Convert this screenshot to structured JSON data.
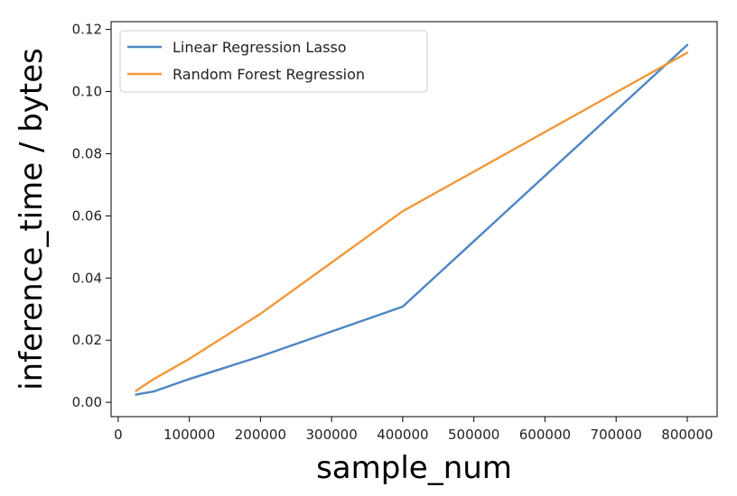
{
  "chart_data": {
    "type": "line",
    "xlabel": "sample_num",
    "ylabel": "inference_time / bytes",
    "xlim": [
      -10000,
      842000
    ],
    "ylim": [
      -0.0046,
      0.1225
    ],
    "xticks": [
      0,
      100000,
      200000,
      300000,
      400000,
      500000,
      600000,
      700000,
      800000
    ],
    "xtick_labels": [
      "0",
      "100000",
      "200000",
      "300000",
      "400000",
      "500000",
      "600000",
      "700000",
      "800000"
    ],
    "yticks": [
      0.0,
      0.02,
      0.04,
      0.06,
      0.08,
      0.1,
      0.12
    ],
    "ytick_labels": [
      "0.00",
      "0.02",
      "0.04",
      "0.06",
      "0.08",
      "0.10",
      "0.12"
    ],
    "grid": false,
    "legend_position": "top-left",
    "series": [
      {
        "name": "Linear Regression Lasso",
        "color": "#4c86c3",
        "x": [
          25000,
          50000,
          100000,
          200000,
          400000,
          800000
        ],
        "y": [
          0.0025,
          0.0035,
          0.0075,
          0.0148,
          0.0308,
          0.115
        ]
      },
      {
        "name": "Random Forest Regression",
        "color": "#f19839",
        "x": [
          25000,
          50000,
          100000,
          200000,
          400000,
          800000
        ],
        "y": [
          0.0037,
          0.0075,
          0.014,
          0.0285,
          0.0615,
          0.1125
        ]
      }
    ]
  }
}
